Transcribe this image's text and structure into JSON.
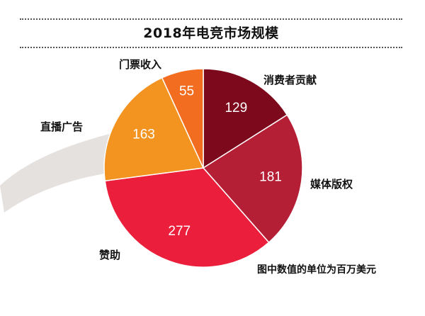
{
  "chart_data": {
    "type": "pie",
    "title": "2018年电竞市场规模",
    "note": "图中数值的单位为百万美元",
    "start_angle_deg": 0,
    "direction": "clockwise",
    "slices": [
      {
        "label": "消费者贡献",
        "value": 129,
        "color": "#7d0a1c"
      },
      {
        "label": "媒体版权",
        "value": 181,
        "color": "#b41f36"
      },
      {
        "label": "赞助",
        "value": 277,
        "color": "#eb1f3c"
      },
      {
        "label": "直播广告",
        "value": 163,
        "color": "#f39421"
      },
      {
        "label": "门票收入",
        "value": 55,
        "color": "#f26d20"
      }
    ]
  }
}
